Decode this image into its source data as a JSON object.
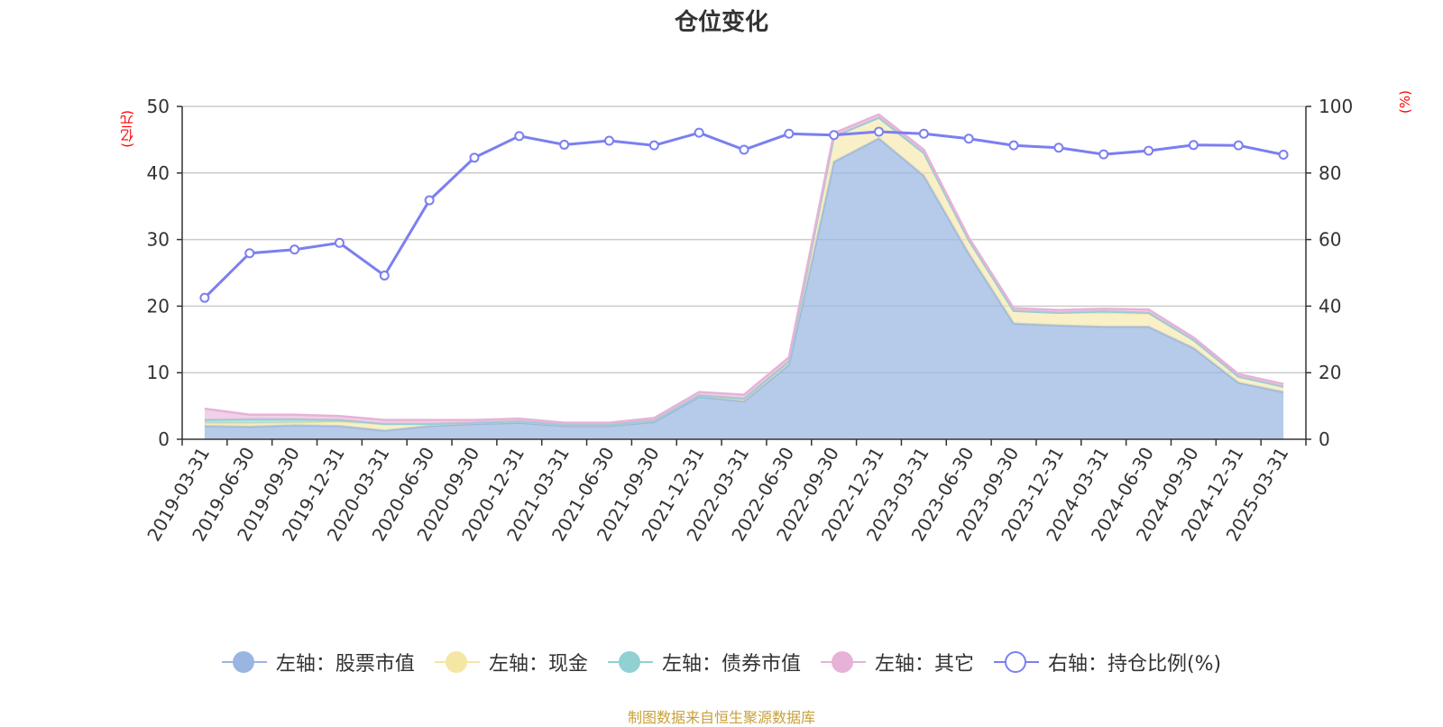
{
  "chart_data": {
    "type": "area",
    "title": "仓位变化",
    "ylabel_left": "(亿元)",
    "ylabel_right": "(%)",
    "ylim_left": [
      0,
      50
    ],
    "ylim_right": [
      0,
      100
    ],
    "yticks_left": [
      "0",
      "10",
      "20",
      "30",
      "40",
      "50"
    ],
    "yticks_right": [
      "0",
      "20",
      "40",
      "60",
      "80",
      "100"
    ],
    "grid": true,
    "legend_position": "bottom",
    "categories": [
      "2019-03-31",
      "2019-06-30",
      "2019-09-30",
      "2019-12-31",
      "2020-03-31",
      "2020-06-30",
      "2020-09-30",
      "2020-12-31",
      "2021-03-31",
      "2021-06-30",
      "2021-09-30",
      "2021-12-31",
      "2022-03-31",
      "2022-06-30",
      "2022-09-30",
      "2022-12-31",
      "2023-03-31",
      "2023-06-30",
      "2023-09-30",
      "2023-12-31",
      "2024-03-31",
      "2024-06-30",
      "2024-09-30",
      "2024-12-31",
      "2025-03-31"
    ],
    "series": [
      {
        "name": "左轴：股票市值",
        "axis": "left",
        "stacked": true,
        "color": "#9ab6e0",
        "values": [
          2.0,
          1.9,
          2.1,
          2.0,
          1.3,
          2.0,
          2.3,
          2.5,
          2.0,
          2.0,
          2.6,
          6.4,
          5.7,
          11.2,
          41.7,
          45.2,
          39.6,
          27.9,
          17.4,
          17.1,
          16.9,
          16.9,
          13.7,
          8.5,
          7.1
        ]
      },
      {
        "name": "左轴：现金",
        "axis": "left",
        "stacked": true,
        "color": "#f5e6a3",
        "values": [
          0.4,
          0.5,
          0.4,
          0.6,
          1.0,
          0.3,
          0.2,
          0.2,
          0.2,
          0.2,
          0.2,
          0.2,
          0.4,
          0.5,
          3.8,
          3.1,
          3.4,
          2.0,
          1.9,
          1.9,
          2.1,
          2.0,
          1.2,
          0.9,
          0.8
        ]
      },
      {
        "name": "左轴：债券市值",
        "axis": "left",
        "stacked": true,
        "color": "#91d0d3",
        "values": [
          0.5,
          0.6,
          0.5,
          0.3,
          0,
          0,
          0,
          0,
          0,
          0,
          0,
          0,
          0,
          0,
          0,
          0,
          0,
          0,
          0,
          0,
          0.2,
          0.1,
          0,
          0,
          0
        ]
      },
      {
        "name": "左轴：其它",
        "axis": "left",
        "stacked": true,
        "color": "#e6b2d8",
        "values": [
          1.7,
          0.7,
          0.7,
          0.6,
          0.6,
          0.6,
          0.4,
          0.4,
          0.3,
          0.3,
          0.4,
          0.5,
          0.6,
          0.6,
          0.5,
          0.5,
          0.5,
          0.4,
          0.4,
          0.4,
          0.4,
          0.5,
          0.4,
          0.4,
          0.4
        ]
      },
      {
        "name": "右轴：持仓比例(%)",
        "axis": "right",
        "stacked": false,
        "color": "#7b7ff0",
        "values": [
          42.5,
          55.9,
          57.0,
          59.0,
          49.2,
          71.8,
          84.6,
          91.1,
          88.5,
          89.7,
          88.3,
          92.1,
          87.0,
          91.8,
          91.4,
          92.4,
          91.8,
          90.3,
          88.3,
          87.6,
          85.6,
          86.7,
          88.4,
          88.3,
          85.5
        ]
      }
    ]
  },
  "footer": {
    "source": "制图数据来自恒生聚源数据库"
  }
}
